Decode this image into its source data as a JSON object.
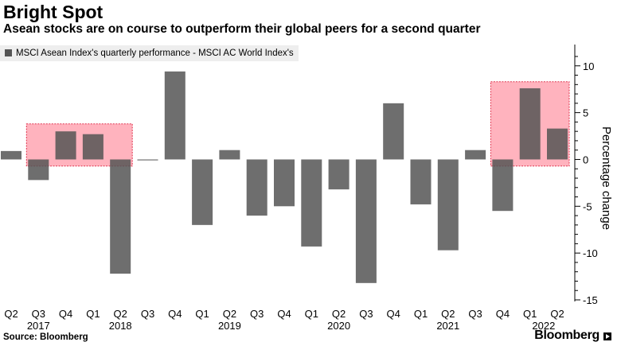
{
  "header": {
    "title": "Bright Spot",
    "subtitle": "Asean stocks are on course to outperform their global peers for a second quarter"
  },
  "footer": {
    "source": "Source: Bloomberg",
    "brand": "Bloomberg"
  },
  "chart_data": {
    "type": "bar",
    "title": "Bright Spot",
    "subtitle": "Asean stocks are on course to outperform their global peers for a second quarter",
    "ylabel": "Percentage change",
    "ylim": [
      -15,
      11
    ],
    "yticks": [
      10,
      5,
      0,
      -5,
      -10,
      -15
    ],
    "legend": "top-left",
    "grid": false,
    "categories": [
      "Q2",
      "Q3",
      "Q4",
      "Q1",
      "Q2",
      "Q3",
      "Q4",
      "Q1",
      "Q2",
      "Q3",
      "Q4",
      "Q1",
      "Q2",
      "Q3",
      "Q4",
      "Q1",
      "Q2",
      "Q3",
      "Q4",
      "Q1",
      "Q2"
    ],
    "year_labels": [
      {
        "label": "2017",
        "at": 1
      },
      {
        "label": "2018",
        "at": 4
      },
      {
        "label": "2019",
        "at": 8
      },
      {
        "label": "2020",
        "at": 12
      },
      {
        "label": "2021",
        "at": 16
      },
      {
        "label": "2022",
        "at": 19.5
      }
    ],
    "series": [
      {
        "name": "MSCI Asean Index's quarterly performance - MSCI AC World Index's",
        "color": "#555555",
        "values": [
          0.9,
          -2.2,
          3.0,
          2.7,
          -12.2,
          -0.1,
          9.4,
          -7.0,
          1.0,
          -6.0,
          -5.0,
          -9.3,
          -3.2,
          -13.2,
          6.0,
          -4.8,
          -9.7,
          1.0,
          -5.5,
          7.6,
          3.3
        ]
      }
    ],
    "highlights": [
      {
        "from": 1,
        "to": 4,
        "range": [
          -0.7,
          3.8
        ],
        "color": "#ff9aa8"
      },
      {
        "from": 18,
        "to": 20,
        "range": [
          -0.7,
          8.3
        ],
        "color": "#ff9aa8"
      }
    ]
  }
}
